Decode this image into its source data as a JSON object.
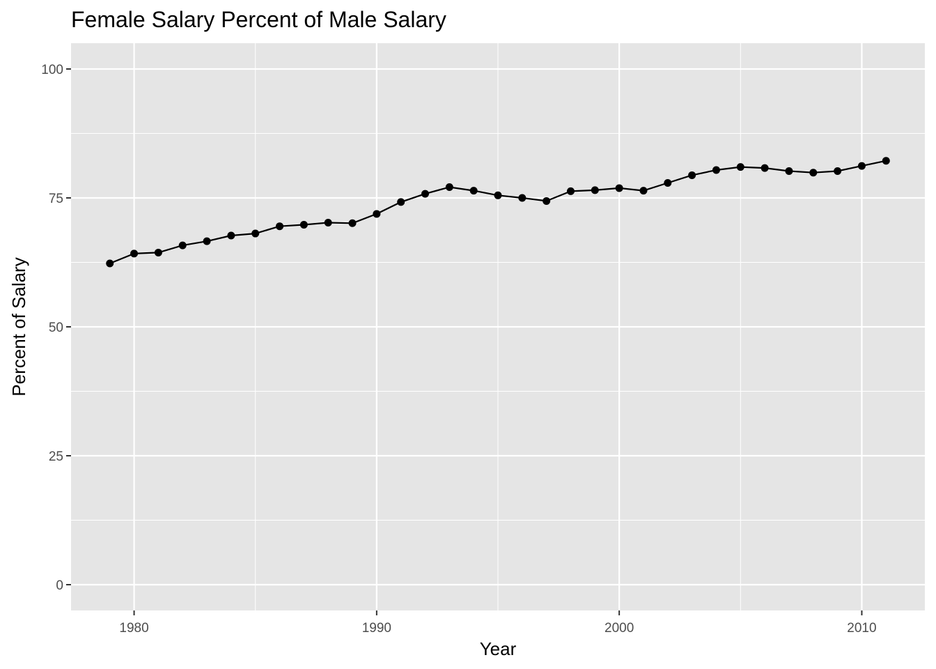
{
  "chart_data": {
    "type": "line",
    "title": "Female Salary Percent of Male Salary",
    "xlabel": "Year",
    "ylabel": "Percent of Salary",
    "xlim": [
      1977.4,
      2012.6
    ],
    "ylim": [
      -5,
      105
    ],
    "x_ticks": [
      1980,
      1990,
      2000,
      2010
    ],
    "y_ticks": [
      0,
      25,
      50,
      75,
      100
    ],
    "grid": true,
    "series": [
      {
        "x": [
          1979,
          1980,
          1981,
          1982,
          1983,
          1984,
          1985,
          1986,
          1987,
          1988,
          1989,
          1990,
          1991,
          1992,
          1993,
          1994,
          1995,
          1996,
          1997,
          1998,
          1999,
          2000,
          2001,
          2002,
          2003,
          2004,
          2005,
          2006,
          2007,
          2008,
          2009,
          2010,
          2011
        ],
        "values": [
          62.3,
          64.2,
          64.4,
          65.8,
          66.6,
          67.7,
          68.1,
          69.5,
          69.8,
          70.2,
          70.1,
          71.9,
          74.2,
          75.8,
          77.1,
          76.4,
          75.5,
          75.0,
          74.4,
          76.3,
          76.5,
          76.9,
          76.4,
          77.9,
          79.4,
          80.4,
          81.0,
          80.8,
          80.2,
          79.9,
          80.2,
          81.2,
          82.2
        ]
      }
    ],
    "colors": {
      "panel": "#E5E5E5",
      "grid": "#FFFFFF",
      "line": "#000000",
      "point": "#000000",
      "tick_text": "#4D4D4D"
    }
  }
}
